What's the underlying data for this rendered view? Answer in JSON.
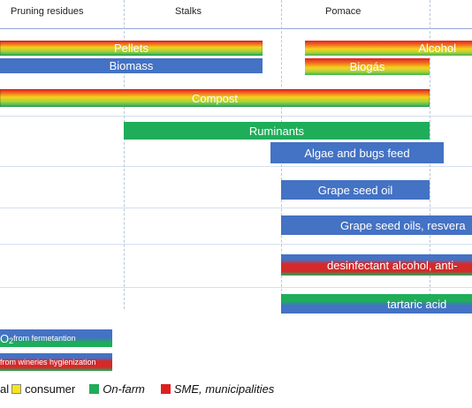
{
  "headers": {
    "pruning": "Pruning residues",
    "stalks": "Stalks",
    "pomace": "Pomace"
  },
  "bars": {
    "pellets": "Pellets",
    "alcohol": "Alcohol",
    "biomass": "Biomass",
    "biogas": "Biogás",
    "compost": "Compost",
    "ruminants": "Ruminants",
    "algae": "Algae and bugs feed",
    "grape_seed_oil": "Grape seed oil",
    "grape_seed_oils_res": "Grape seed oils, resvera",
    "desinfectant": "desinfectant alcohol, anti-",
    "tartaric": "tartaric  acid",
    "co2_main": "O",
    "co2_sub": "2",
    "co2_rest": " from fermetantion",
    "hygienization": " from wineries hygienization"
  },
  "legend": {
    "item_partial": "al",
    "consumer": "consumer",
    "onfarm": "On-farm",
    "sme": "SME, municipalities"
  },
  "colors": {
    "blue": "#4472c4",
    "green": "#1fad5a",
    "red": "#e02020",
    "yellow": "#f5e61a"
  }
}
